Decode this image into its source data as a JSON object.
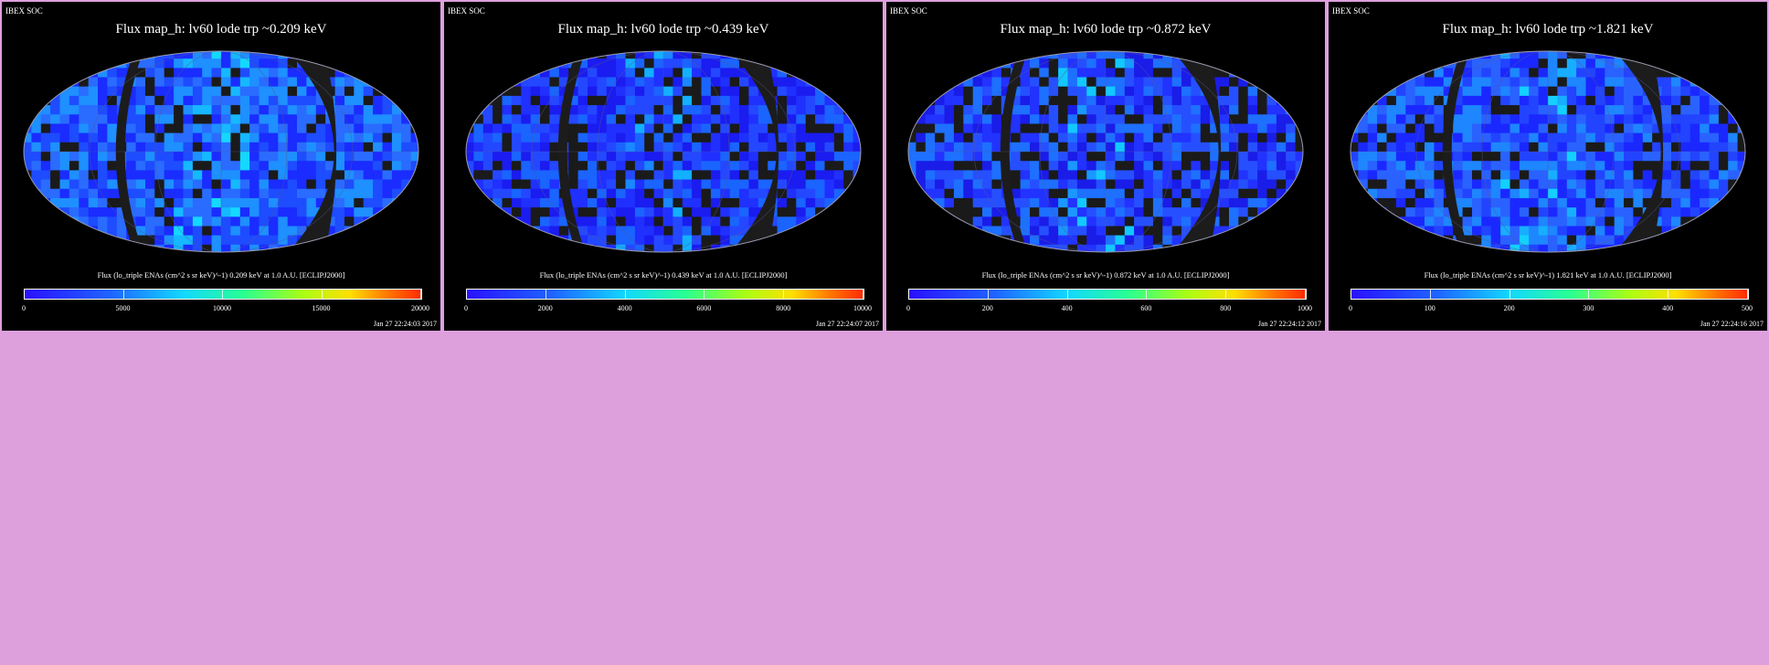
{
  "panels": [
    {
      "label": "IBEX SOC",
      "title": "Flux   map_h: lv60 lode trp ~0.209 keV",
      "caption": "Flux (lo_triple ENAs (cm^2 s sr keV)^-1)  0.209 keV at 1.0 A.U. [ECLIPJ2000]",
      "colorbar_ticks": [
        "0",
        "5000",
        "10000",
        "15000",
        "20000"
      ],
      "colorbar_range": [
        0,
        20000
      ],
      "timestamp": "Jan 27 22:24:03 2017"
    },
    {
      "label": "IBEX SOC",
      "title": "Flux   map_h: lv60 lode trp ~0.439 keV",
      "caption": "Flux (lo_triple ENAs (cm^2 s sr keV)^-1)  0.439 keV at 1.0 A.U. [ECLIPJ2000]",
      "colorbar_ticks": [
        "0",
        "2000",
        "4000",
        "6000",
        "8000",
        "10000"
      ],
      "colorbar_range": [
        0,
        10000
      ],
      "timestamp": "Jan 27 22:24:07 2017"
    },
    {
      "label": "IBEX SOC",
      "title": "Flux   map_h: lv60 lode trp ~0.872 keV",
      "caption": "Flux (lo_triple ENAs (cm^2 s sr keV)^-1)  0.872 keV at 1.0 A.U. [ECLIPJ2000]",
      "colorbar_ticks": [
        "0",
        "200",
        "400",
        "600",
        "800",
        "1000"
      ],
      "colorbar_range": [
        0,
        1000
      ],
      "timestamp": "Jan 27 22:24:12 2017"
    },
    {
      "label": "IBEX SOC",
      "title": "Flux   map_h: lv60 lode trp ~1.821 keV",
      "caption": "Flux (lo_triple ENAs (cm^2 s sr keV)^-1)  1.821 keV at 1.0 A.U. [ECLIPJ2000]",
      "colorbar_ticks": [
        "0",
        "100",
        "200",
        "300",
        "400",
        "500"
      ],
      "colorbar_range": [
        0,
        500
      ],
      "timestamp": "Jan 27 22:24:16 2017"
    }
  ],
  "colors": {
    "background": "#dda0dd",
    "panel_background": "#000000",
    "map_base": "#1a3cff",
    "data_gap": "#1a1a1a",
    "panel_border": "#c070c0"
  }
}
